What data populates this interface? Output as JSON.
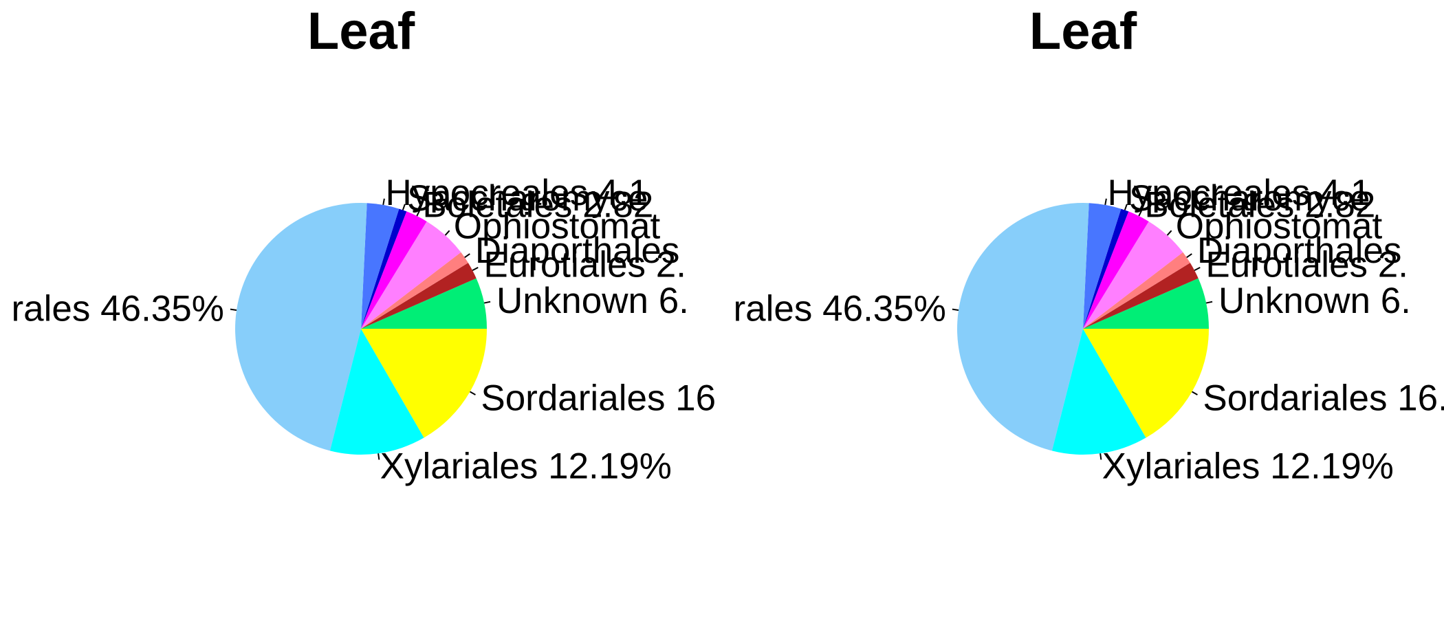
{
  "chart_data": [
    {
      "type": "pie",
      "title": "Leaf",
      "slices": [
        {
          "label": "Unknown  6.",
          "value": 6.5,
          "color": "#00ee76"
        },
        {
          "label": "Eurotiales 2.",
          "value": 2.2,
          "color": "#b22222"
        },
        {
          "label": "Diaporthales",
          "value": 1.6,
          "color": "#ff7f7f"
        },
        {
          "label": "Ophiostomat",
          "value": 5.8,
          "color": "#ff7fff"
        },
        {
          "label": "Boletales 2.82",
          "value": 2.82,
          "color": "#ff00ff"
        },
        {
          "label": "Saccharomyce",
          "value": 1.0,
          "color": "#0000cd"
        },
        {
          "label": "Hypocreales 4.1",
          "value": 4.1,
          "color": "#4876ff"
        },
        {
          "label": "rales 46.35%",
          "value": 46.35,
          "color": "#87cefa"
        },
        {
          "label": "Xylariales 12.19%",
          "value": 12.19,
          "color": "#00ffff"
        },
        {
          "label": "Sordariales  16",
          "value": 16.5,
          "color": "#ffff00"
        }
      ]
    },
    {
      "type": "pie",
      "title": "Leaf",
      "slices": [
        {
          "label": "Unknown  6.",
          "value": 6.5,
          "color": "#00ee76"
        },
        {
          "label": "Eurotiales 2.",
          "value": 2.2,
          "color": "#b22222"
        },
        {
          "label": "Diaporthales",
          "value": 1.6,
          "color": "#ff7f7f"
        },
        {
          "label": "Ophiostomat",
          "value": 5.8,
          "color": "#ff7fff"
        },
        {
          "label": "Boletales 2.82",
          "value": 2.82,
          "color": "#ff00ff"
        },
        {
          "label": "Saccharomyce",
          "value": 1.0,
          "color": "#0000cd"
        },
        {
          "label": "Hypocreales 4.1",
          "value": 4.1,
          "color": "#4876ff"
        },
        {
          "label": "rales 46.35%",
          "value": 46.35,
          "color": "#87cefa"
        },
        {
          "label": "Xylariales 12.19%",
          "value": 12.19,
          "color": "#00ffff"
        },
        {
          "label": "Sordariales  16.",
          "value": 16.5,
          "color": "#ffff00"
        }
      ]
    }
  ]
}
